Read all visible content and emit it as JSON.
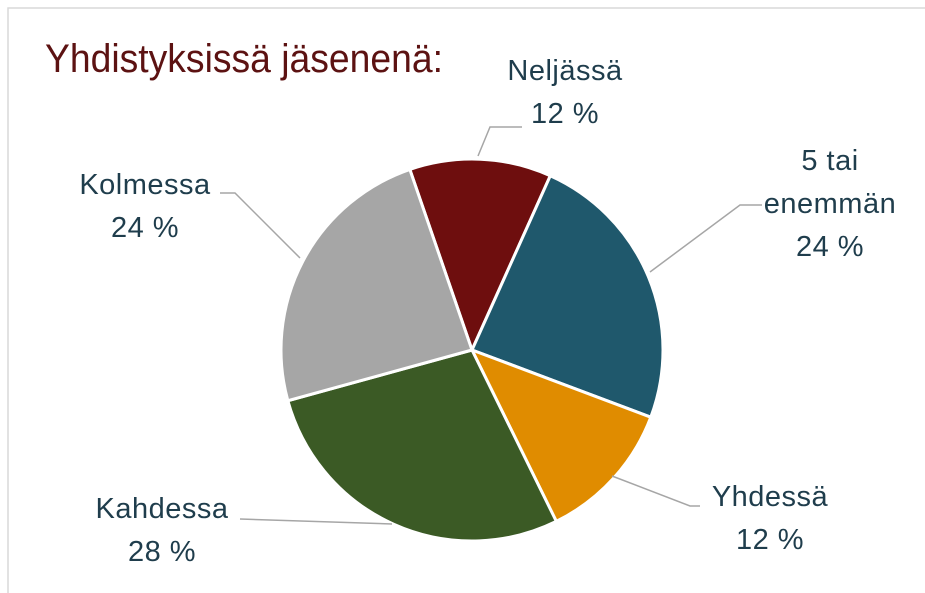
{
  "chart_data": {
    "type": "pie",
    "title": "Yhdistyksissä jäsenenä:",
    "categories": [
      "Neljässä",
      "5 tai enemmän",
      "Yhdessä",
      "Kahdessa",
      "Kolmessa"
    ],
    "values": [
      12,
      24,
      12,
      28,
      24
    ],
    "value_labels": [
      "12 %",
      "24 %",
      "12 %",
      "28 %",
      "24 %"
    ],
    "colors": [
      "#6e0e0e",
      "#1f586c",
      "#e08c00",
      "#3b5a25",
      "#a6a6a6"
    ]
  }
}
